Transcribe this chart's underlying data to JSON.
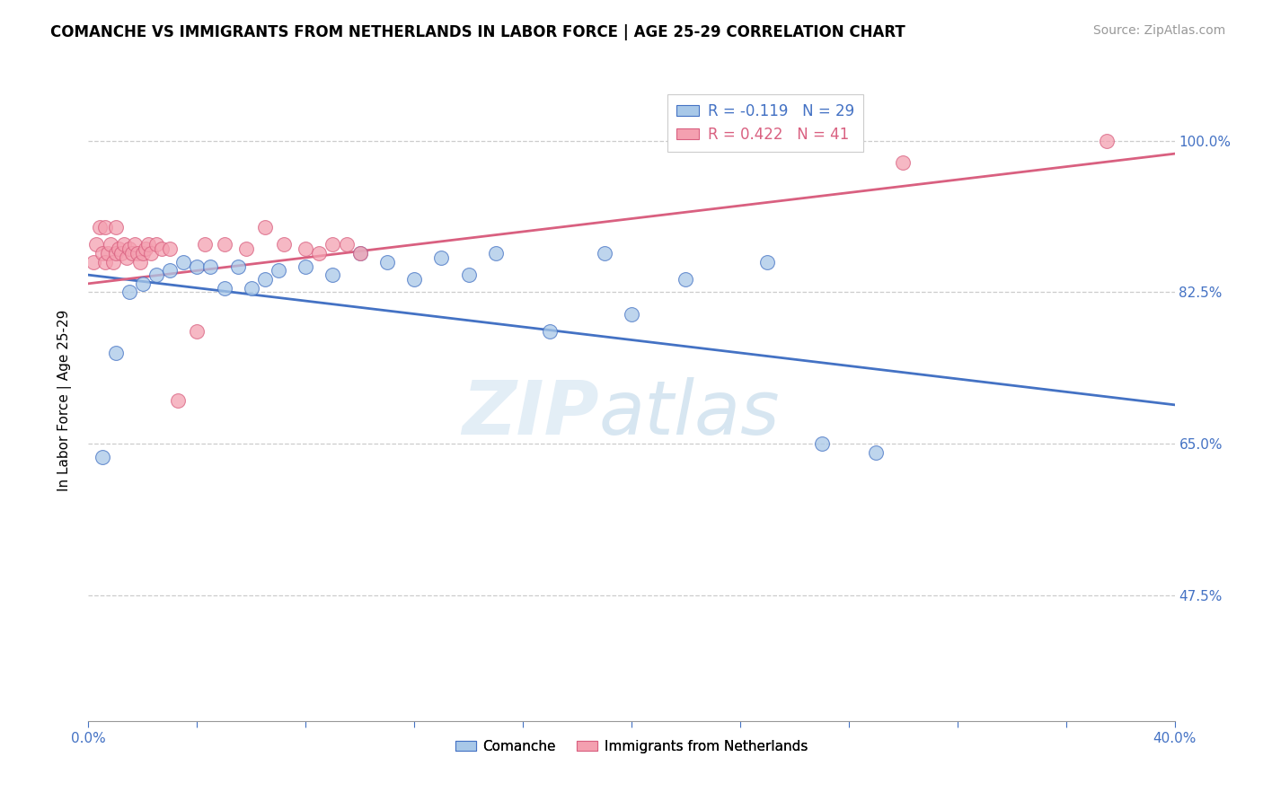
{
  "title": "COMANCHE VS IMMIGRANTS FROM NETHERLANDS IN LABOR FORCE | AGE 25-29 CORRELATION CHART",
  "source": "Source: ZipAtlas.com",
  "ylabel": "In Labor Force | Age 25-29",
  "ytick_labels": [
    "100.0%",
    "82.5%",
    "65.0%",
    "47.5%"
  ],
  "ytick_values": [
    1.0,
    0.825,
    0.65,
    0.475
  ],
  "xlim": [
    0.0,
    0.4
  ],
  "ylim": [
    0.33,
    1.07
  ],
  "legend_blue_r": -0.119,
  "legend_blue_n": 29,
  "legend_pink_r": 0.422,
  "legend_pink_n": 41,
  "blue_color": "#a8c8e8",
  "pink_color": "#f4a0b0",
  "blue_line_color": "#4472c4",
  "pink_line_color": "#d96080",
  "blue_line_x0": 0.0,
  "blue_line_y0": 0.845,
  "blue_line_x1": 0.4,
  "blue_line_y1": 0.695,
  "pink_line_x0": 0.0,
  "pink_line_y0": 0.835,
  "pink_line_x1": 0.4,
  "pink_line_y1": 0.985,
  "blue_scatter_x": [
    0.005,
    0.01,
    0.015,
    0.02,
    0.025,
    0.03,
    0.035,
    0.04,
    0.045,
    0.05,
    0.055,
    0.06,
    0.065,
    0.07,
    0.08,
    0.09,
    0.1,
    0.11,
    0.12,
    0.13,
    0.14,
    0.15,
    0.17,
    0.19,
    0.2,
    0.22,
    0.25,
    0.27,
    0.29
  ],
  "blue_scatter_y": [
    0.635,
    0.755,
    0.825,
    0.835,
    0.845,
    0.85,
    0.86,
    0.855,
    0.855,
    0.83,
    0.855,
    0.83,
    0.84,
    0.85,
    0.855,
    0.845,
    0.87,
    0.86,
    0.84,
    0.865,
    0.845,
    0.87,
    0.78,
    0.87,
    0.8,
    0.84,
    0.86,
    0.65,
    0.64
  ],
  "pink_scatter_x": [
    0.002,
    0.003,
    0.004,
    0.005,
    0.006,
    0.006,
    0.007,
    0.008,
    0.009,
    0.01,
    0.01,
    0.011,
    0.012,
    0.013,
    0.014,
    0.015,
    0.016,
    0.017,
    0.018,
    0.019,
    0.02,
    0.021,
    0.022,
    0.023,
    0.025,
    0.027,
    0.03,
    0.033,
    0.04,
    0.043,
    0.05,
    0.058,
    0.065,
    0.072,
    0.08,
    0.085,
    0.09,
    0.095,
    0.1,
    0.3,
    0.375
  ],
  "pink_scatter_y": [
    0.86,
    0.88,
    0.9,
    0.87,
    0.9,
    0.86,
    0.87,
    0.88,
    0.86,
    0.87,
    0.9,
    0.875,
    0.87,
    0.88,
    0.865,
    0.875,
    0.87,
    0.88,
    0.87,
    0.86,
    0.87,
    0.875,
    0.88,
    0.87,
    0.88,
    0.875,
    0.875,
    0.7,
    0.78,
    0.88,
    0.88,
    0.875,
    0.9,
    0.88,
    0.875,
    0.87,
    0.88,
    0.88,
    0.87,
    0.975,
    1.0
  ]
}
